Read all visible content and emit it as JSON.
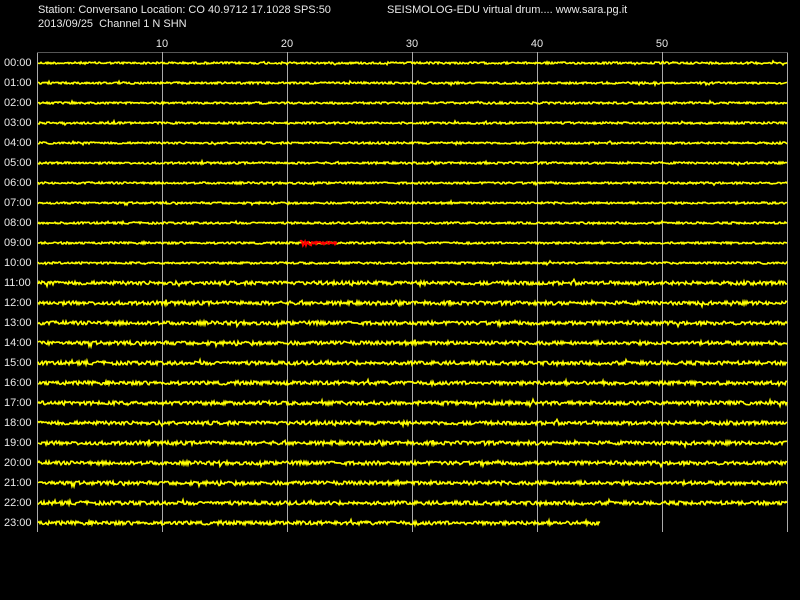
{
  "header": {
    "station": "Station: Conversano Location: CO 40.9712 17.1028 SPS:50",
    "program": "SEISMOLOG-EDU virtual drum.... www.sara.pg.it",
    "date_channel": "2013/09/25  Channel 1 N SHN"
  },
  "minute_labels": [
    10,
    20,
    30,
    40,
    50
  ],
  "hour_labels": [
    "00:00",
    "01:00",
    "02:00",
    "03:00",
    "04:00",
    "05:00",
    "06:00",
    "07:00",
    "08:00",
    "09:00",
    "10:00",
    "11:00",
    "12:00",
    "13:00",
    "14:00",
    "15:00",
    "16:00",
    "17:00",
    "18:00",
    "19:00",
    "20:00",
    "21:00",
    "22:00",
    "23:00"
  ]
}
